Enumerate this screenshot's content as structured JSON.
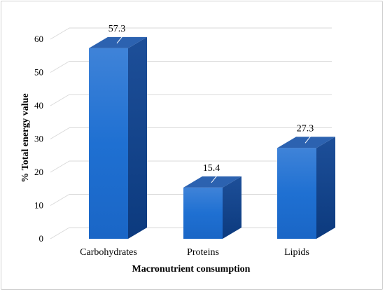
{
  "chart_data": {
    "type": "bar",
    "categories": [
      "Carbohydrates",
      "Proteins",
      "Lipids"
    ],
    "values": [
      57.3,
      15.4,
      27.3
    ],
    "xlabel": "Macronutrient consumption",
    "ylabel": "% Total energy value",
    "ylim": [
      0,
      60
    ],
    "yticks": [
      0,
      10,
      20,
      30,
      40,
      50,
      60
    ],
    "grid": true,
    "style": "3d",
    "colors": {
      "bar_top": "#3b7fd6",
      "bar_front": "#1f6fd0",
      "bar_side": "#0d3f86",
      "bar_cap": "#2c62b0",
      "grid": "#d9d9d9"
    }
  }
}
